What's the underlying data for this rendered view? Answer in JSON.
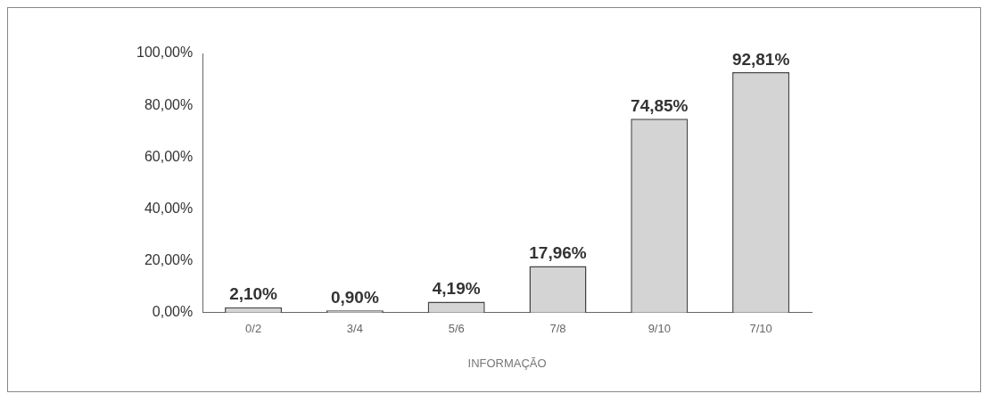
{
  "chart_data": {
    "type": "bar",
    "xlabel": "INFORMAÇÃO",
    "categories": [
      "0/2",
      "3/4",
      "5/6",
      "7/8",
      "9/10",
      "7/10"
    ],
    "values": [
      2.1,
      0.9,
      4.19,
      17.96,
      74.85,
      92.81
    ],
    "value_labels": [
      "2,10%",
      "0,90%",
      "4,19%",
      "17,96%",
      "74,85%",
      "92,81%"
    ],
    "color": "#d4d4d4",
    "ylim": [
      0,
      100
    ],
    "yticks": [
      {
        "value": 0,
        "label": "0,00%"
      },
      {
        "value": 20,
        "label": "20,00%"
      },
      {
        "value": 40,
        "label": "40,00%"
      },
      {
        "value": 60,
        "label": "60,00%"
      },
      {
        "value": 80,
        "label": "80,00%"
      },
      {
        "value": 100,
        "label": "100,00%"
      }
    ],
    "grid": false,
    "legend": false
  }
}
